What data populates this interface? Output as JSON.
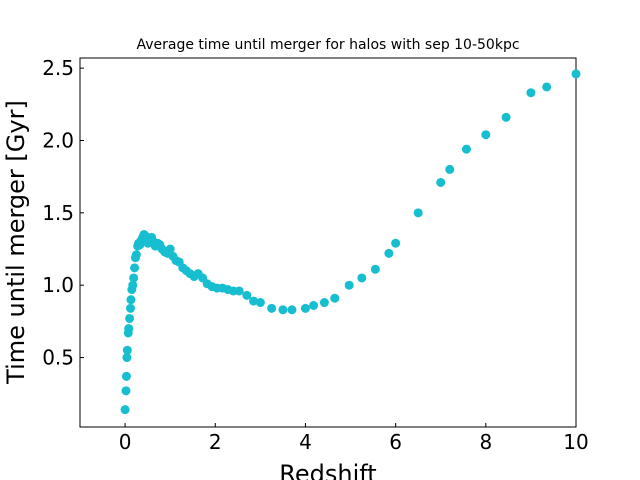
{
  "chart_data": {
    "type": "scatter",
    "title": "Average time until merger for halos with sep 10-50kpc",
    "xlabel": "Redshift",
    "ylabel": "Time until merger [Gyr]",
    "xlim": [
      -1,
      10
    ],
    "ylim": [
      0.02,
      2.57
    ],
    "xticks": [
      0,
      2,
      4,
      6,
      8,
      10
    ],
    "yticks": [
      0.5,
      1.0,
      1.5,
      2.0,
      2.5
    ],
    "xtick_labels": [
      "0",
      "2",
      "4",
      "6",
      "8",
      "10"
    ],
    "ytick_labels": [
      "0.5",
      "1.0",
      "1.5",
      "2.0",
      "2.5"
    ],
    "grid": false,
    "ticks_direction": "in",
    "marker_color": "#17becf",
    "points": [
      {
        "x": 0.0,
        "y": 0.14
      },
      {
        "x": 0.02,
        "y": 0.27
      },
      {
        "x": 0.03,
        "y": 0.37
      },
      {
        "x": 0.04,
        "y": 0.5
      },
      {
        "x": 0.05,
        "y": 0.55
      },
      {
        "x": 0.07,
        "y": 0.67
      },
      {
        "x": 0.08,
        "y": 0.7
      },
      {
        "x": 0.1,
        "y": 0.77
      },
      {
        "x": 0.12,
        "y": 0.84
      },
      {
        "x": 0.13,
        "y": 0.9
      },
      {
        "x": 0.15,
        "y": 0.97
      },
      {
        "x": 0.17,
        "y": 1.0
      },
      {
        "x": 0.19,
        "y": 1.05
      },
      {
        "x": 0.21,
        "y": 1.12
      },
      {
        "x": 0.23,
        "y": 1.19
      },
      {
        "x": 0.25,
        "y": 1.21
      },
      {
        "x": 0.28,
        "y": 1.27
      },
      {
        "x": 0.3,
        "y": 1.29
      },
      {
        "x": 0.33,
        "y": 1.28
      },
      {
        "x": 0.36,
        "y": 1.31
      },
      {
        "x": 0.39,
        "y": 1.33
      },
      {
        "x": 0.42,
        "y": 1.35
      },
      {
        "x": 0.45,
        "y": 1.34
      },
      {
        "x": 0.48,
        "y": 1.3
      },
      {
        "x": 0.51,
        "y": 1.29
      },
      {
        "x": 0.55,
        "y": 1.32
      },
      {
        "x": 0.59,
        "y": 1.33
      },
      {
        "x": 0.63,
        "y": 1.3
      },
      {
        "x": 0.67,
        "y": 1.27
      },
      {
        "x": 0.72,
        "y": 1.29
      },
      {
        "x": 0.77,
        "y": 1.28
      },
      {
        "x": 0.82,
        "y": 1.25
      },
      {
        "x": 0.88,
        "y": 1.23
      },
      {
        "x": 0.94,
        "y": 1.22
      },
      {
        "x": 1.0,
        "y": 1.25
      },
      {
        "x": 1.06,
        "y": 1.2
      },
      {
        "x": 1.13,
        "y": 1.17
      },
      {
        "x": 1.2,
        "y": 1.16
      },
      {
        "x": 1.28,
        "y": 1.12
      },
      {
        "x": 1.36,
        "y": 1.1
      },
      {
        "x": 1.44,
        "y": 1.08
      },
      {
        "x": 1.53,
        "y": 1.06
      },
      {
        "x": 1.62,
        "y": 1.08
      },
      {
        "x": 1.72,
        "y": 1.05
      },
      {
        "x": 1.82,
        "y": 1.01
      },
      {
        "x": 1.93,
        "y": 0.99
      },
      {
        "x": 2.04,
        "y": 0.98
      },
      {
        "x": 2.16,
        "y": 0.98
      },
      {
        "x": 2.28,
        "y": 0.97
      },
      {
        "x": 2.4,
        "y": 0.96
      },
      {
        "x": 2.53,
        "y": 0.96
      },
      {
        "x": 2.7,
        "y": 0.93
      },
      {
        "x": 2.85,
        "y": 0.89
      },
      {
        "x": 3.0,
        "y": 0.88
      },
      {
        "x": 3.25,
        "y": 0.84
      },
      {
        "x": 3.5,
        "y": 0.83
      },
      {
        "x": 3.7,
        "y": 0.83
      },
      {
        "x": 4.0,
        "y": 0.84
      },
      {
        "x": 4.18,
        "y": 0.86
      },
      {
        "x": 4.42,
        "y": 0.88
      },
      {
        "x": 4.65,
        "y": 0.91
      },
      {
        "x": 4.97,
        "y": 1.0
      },
      {
        "x": 5.25,
        "y": 1.05
      },
      {
        "x": 5.55,
        "y": 1.11
      },
      {
        "x": 5.85,
        "y": 1.22
      },
      {
        "x": 6.0,
        "y": 1.29
      },
      {
        "x": 6.5,
        "y": 1.5
      },
      {
        "x": 7.0,
        "y": 1.71
      },
      {
        "x": 7.2,
        "y": 1.8
      },
      {
        "x": 7.57,
        "y": 1.94
      },
      {
        "x": 8.0,
        "y": 2.04
      },
      {
        "x": 8.45,
        "y": 2.16
      },
      {
        "x": 9.0,
        "y": 2.33
      },
      {
        "x": 9.35,
        "y": 2.37
      },
      {
        "x": 10.0,
        "y": 2.46
      }
    ]
  }
}
